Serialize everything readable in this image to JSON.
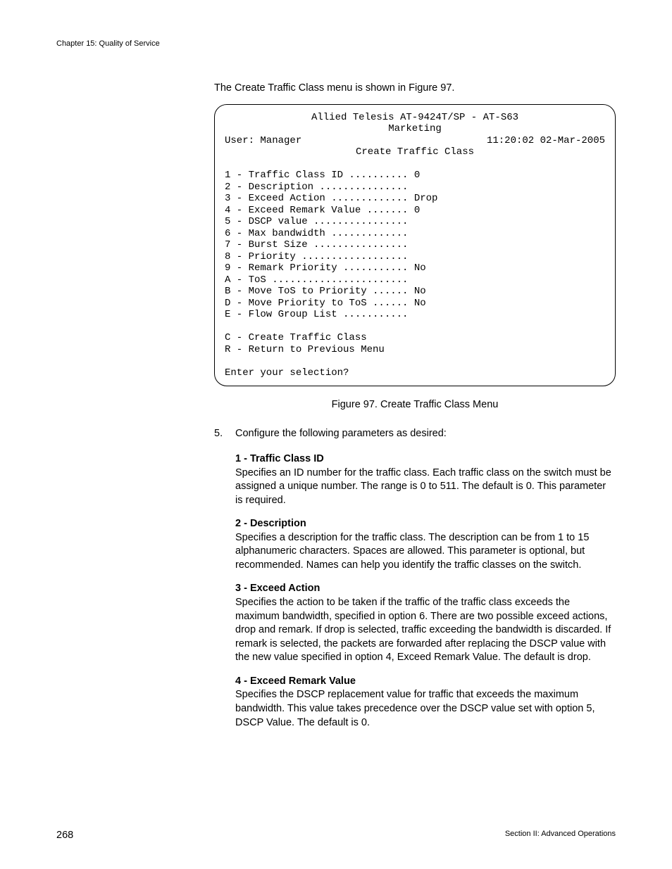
{
  "header": {
    "chapter": "Chapter 15: Quality of Service"
  },
  "intro_line": "The Create Traffic Class menu is shown in Figure 97.",
  "terminal": {
    "title_line1": "Allied Telesis AT-9424T/SP - AT-S63",
    "title_line2": "Marketing",
    "user_label": "User: Manager",
    "datetime": "11:20:02 02-Mar-2005",
    "screen_title": "Create Traffic Class",
    "items": [
      "1 - Traffic Class ID .......... 0",
      "2 - Description ...............",
      "3 - Exceed Action ............. Drop",
      "4 - Exceed Remark Value ....... 0",
      "5 - DSCP value ................",
      "6 - Max bandwidth .............",
      "7 - Burst Size ................",
      "8 - Priority ..................",
      "9 - Remark Priority ........... No",
      "A - ToS .......................",
      "B - Move ToS to Priority ...... No",
      "D - Move Priority to ToS ...... No",
      "E - Flow Group List ..........."
    ],
    "actions": [
      "C - Create Traffic Class",
      "R - Return to Previous Menu"
    ],
    "prompt": "Enter your selection?"
  },
  "figure_caption": "Figure 97. Create Traffic Class Menu",
  "step": {
    "number": "5.",
    "text": "Configure the following parameters as desired:"
  },
  "params": [
    {
      "title": "1 - Traffic Class ID",
      "body": "Specifies an ID number for the traffic class. Each traffic class on the switch must be assigned a unique number. The range is 0 to 511. The default is 0. This parameter is required."
    },
    {
      "title": "2 - Description",
      "body": "Specifies a description for the traffic class. The description can be from 1 to 15 alphanumeric characters. Spaces are allowed. This parameter is optional, but recommended. Names can help you identify the traffic classes on the switch."
    },
    {
      "title": "3 - Exceed Action",
      "body": "Specifies the action to be taken if the traffic of the traffic class exceeds the maximum bandwidth, specified in option 6. There are two possible exceed actions, drop and remark. If drop is selected, traffic exceeding the bandwidth is discarded. If remark is selected, the packets are forwarded after replacing the DSCP value with the new value specified in option 4, Exceed Remark Value. The default is drop."
    },
    {
      "title": "4 - Exceed Remark Value",
      "body": "Specifies the DSCP replacement value for traffic that exceeds the maximum bandwidth. This value takes precedence over the DSCP value set with option 5, DSCP Value. The default is 0."
    }
  ],
  "footer": {
    "page": "268",
    "section": "Section II: Advanced Operations"
  }
}
